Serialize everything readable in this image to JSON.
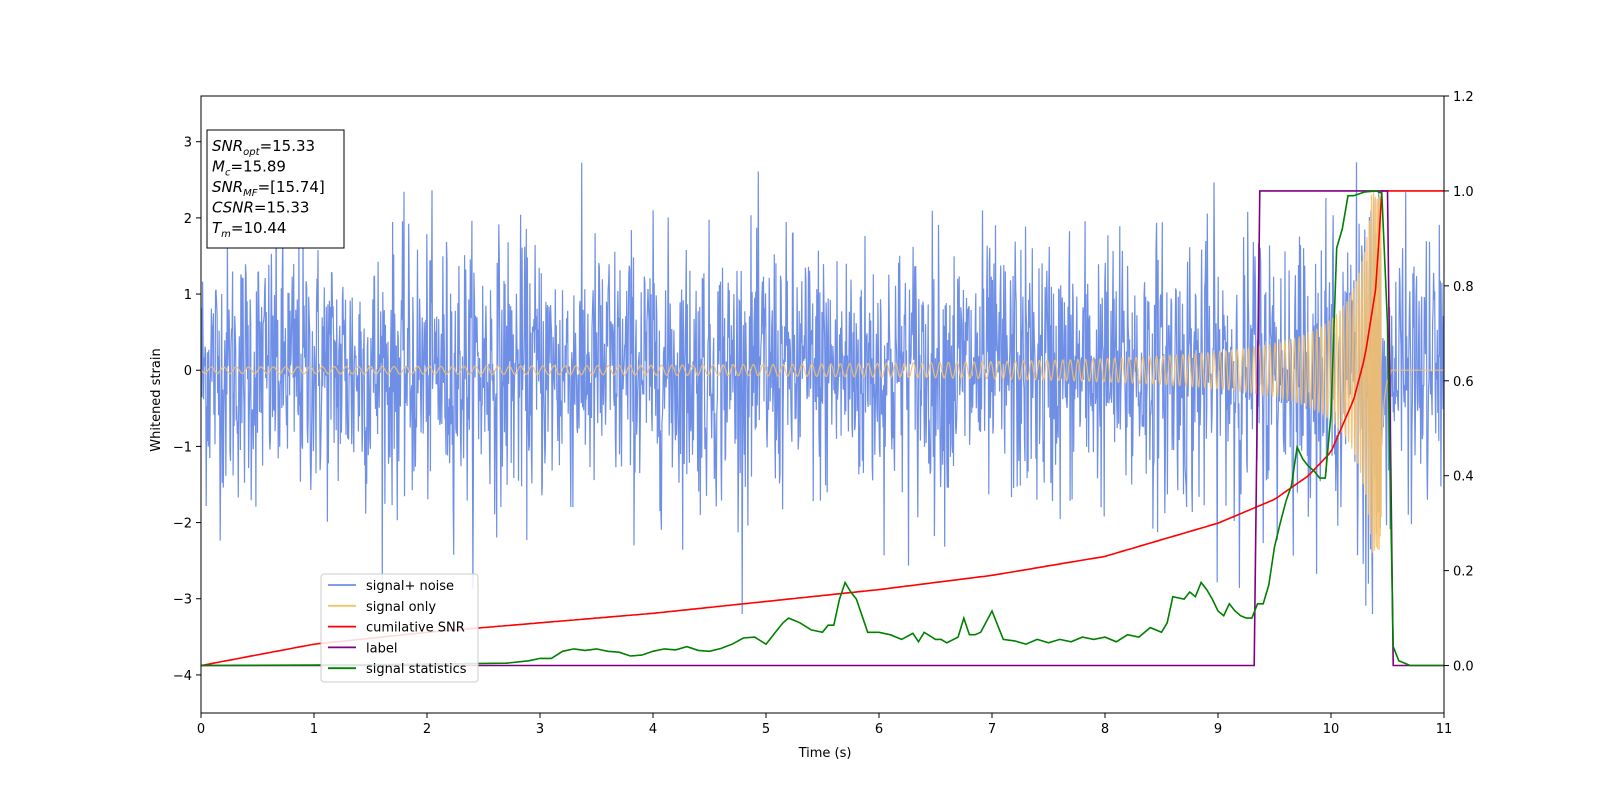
{
  "chart_data": {
    "type": "line",
    "xlabel": "Time (s)",
    "ylabel": "Whitened strain",
    "xlim": [
      0,
      11
    ],
    "ylim_left": [
      -4.5,
      3.6
    ],
    "ylim_right": [
      -0.1,
      1.2
    ],
    "x_ticks": [
      "0",
      "1",
      "2",
      "3",
      "4",
      "5",
      "6",
      "7",
      "8",
      "9",
      "10",
      "11"
    ],
    "y_left_ticks": [
      "−4",
      "−3",
      "−2",
      "−1",
      "0",
      "1",
      "2",
      "3"
    ],
    "y_right_ticks": [
      "0.0",
      "0.2",
      "0.4",
      "0.6",
      "0.8",
      "1.0",
      "1.2"
    ],
    "legend_position": "lower-left",
    "info_box": {
      "lines": [
        {
          "name": "SNR",
          "sub": "opt",
          "value": "=15.33"
        },
        {
          "name": "M",
          "sub": "c",
          "value": "=15.89"
        },
        {
          "name": "SNR",
          "sub": "MF",
          "value": "=[15.74]"
        },
        {
          "name": "CSNR",
          "sub": "",
          "value": "=15.33"
        },
        {
          "name": "T",
          "sub": "m",
          "value": "=10.44"
        }
      ]
    },
    "series": [
      {
        "name": "signal+ noise",
        "color": "#6f8fe6",
        "axis": "left",
        "noise_std": 0.85,
        "noise_peak": 3.2
      },
      {
        "name": "signal only",
        "color": "#f5c16c",
        "axis": "left",
        "start_amp": 0.04,
        "merger_time": 10.45,
        "peak_amp": 2.4
      },
      {
        "name": "cumilative SNR",
        "color": "#ff0000",
        "axis": "right",
        "x": [
          0,
          1,
          2,
          3,
          4,
          5,
          6,
          7,
          8,
          9,
          9.5,
          9.8,
          10,
          10.2,
          10.3,
          10.4,
          10.45,
          11
        ],
        "y": [
          0.0,
          0.045,
          0.07,
          0.09,
          0.11,
          0.135,
          0.16,
          0.19,
          0.23,
          0.3,
          0.35,
          0.4,
          0.45,
          0.56,
          0.65,
          0.8,
          1.0,
          1.0
        ]
      },
      {
        "name": "label",
        "color": "#800080",
        "axis": "right",
        "x": [
          0,
          9.32,
          9.37,
          10.5,
          10.55,
          11
        ],
        "y": [
          0,
          0,
          1,
          1,
          0,
          0
        ]
      },
      {
        "name": "signal statistics",
        "color": "#008000",
        "axis": "right",
        "x": [
          0,
          1,
          2,
          2.7,
          2.9,
          3.0,
          3.1,
          3.2,
          3.3,
          3.4,
          3.5,
          3.6,
          3.7,
          3.8,
          3.9,
          4.0,
          4.1,
          4.2,
          4.3,
          4.4,
          4.5,
          4.6,
          4.7,
          4.8,
          4.9,
          5.0,
          5.05,
          5.1,
          5.15,
          5.2,
          5.3,
          5.4,
          5.5,
          5.55,
          5.6,
          5.65,
          5.7,
          5.75,
          5.8,
          5.9,
          6.0,
          6.1,
          6.2,
          6.3,
          6.35,
          6.4,
          6.5,
          6.55,
          6.6,
          6.7,
          6.75,
          6.8,
          6.85,
          6.9,
          7.0,
          7.1,
          7.2,
          7.3,
          7.4,
          7.5,
          7.6,
          7.7,
          7.8,
          7.9,
          8.0,
          8.1,
          8.2,
          8.3,
          8.4,
          8.5,
          8.55,
          8.6,
          8.7,
          8.75,
          8.8,
          8.85,
          8.9,
          8.95,
          9.0,
          9.05,
          9.1,
          9.15,
          9.2,
          9.25,
          9.3,
          9.35,
          9.4,
          9.45,
          9.5,
          9.55,
          9.6,
          9.65,
          9.7,
          9.75,
          9.8,
          9.85,
          9.9,
          9.95,
          10.0,
          10.05,
          10.1,
          10.15,
          10.2,
          10.3,
          10.4,
          10.45,
          10.5,
          10.55,
          10.6,
          10.7,
          11
        ],
        "y": [
          0.0,
          0.001,
          0.003,
          0.005,
          0.01,
          0.015,
          0.015,
          0.03,
          0.035,
          0.032,
          0.035,
          0.03,
          0.028,
          0.02,
          0.022,
          0.03,
          0.035,
          0.033,
          0.04,
          0.032,
          0.03,
          0.036,
          0.045,
          0.058,
          0.06,
          0.045,
          0.06,
          0.075,
          0.09,
          0.1,
          0.09,
          0.075,
          0.07,
          0.085,
          0.085,
          0.14,
          0.175,
          0.155,
          0.14,
          0.07,
          0.07,
          0.065,
          0.055,
          0.068,
          0.05,
          0.07,
          0.055,
          0.055,
          0.048,
          0.06,
          0.1,
          0.065,
          0.065,
          0.07,
          0.115,
          0.055,
          0.052,
          0.045,
          0.055,
          0.048,
          0.055,
          0.05,
          0.06,
          0.055,
          0.06,
          0.05,
          0.065,
          0.06,
          0.08,
          0.07,
          0.09,
          0.145,
          0.14,
          0.155,
          0.145,
          0.175,
          0.16,
          0.14,
          0.115,
          0.105,
          0.13,
          0.115,
          0.105,
          0.1,
          0.1,
          0.13,
          0.13,
          0.17,
          0.25,
          0.3,
          0.345,
          0.38,
          0.46,
          0.435,
          0.42,
          0.41,
          0.395,
          0.395,
          0.53,
          0.88,
          0.92,
          0.99,
          0.99,
          0.998,
          1.0,
          0.995,
          0.72,
          0.04,
          0.01,
          0.0,
          0.0
        ]
      }
    ]
  }
}
